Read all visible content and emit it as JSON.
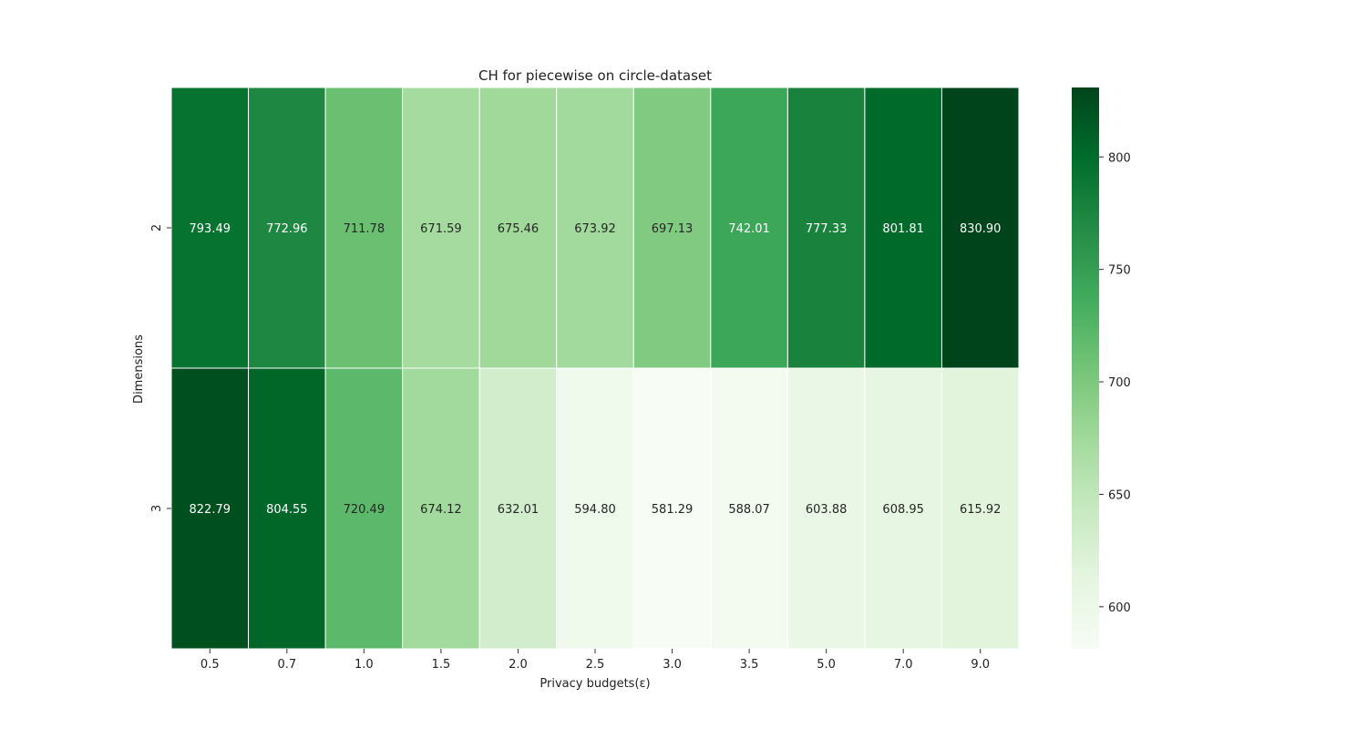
{
  "chart_data": {
    "type": "heatmap",
    "title": "CH for piecewise on circle-dataset",
    "xlabel": "Privacy budgets(ε)",
    "ylabel": "Dimensions",
    "x_categories": [
      "0.5",
      "0.7",
      "1.0",
      "1.5",
      "2.0",
      "2.5",
      "3.0",
      "3.5",
      "5.0",
      "7.0",
      "9.0"
    ],
    "y_categories": [
      "2",
      "3"
    ],
    "values": [
      [
        793.49,
        772.96,
        711.78,
        671.59,
        675.46,
        673.92,
        697.13,
        742.01,
        777.33,
        801.81,
        830.9
      ],
      [
        822.79,
        804.55,
        720.49,
        674.12,
        632.01,
        594.8,
        581.29,
        588.07,
        603.88,
        608.95,
        615.92
      ]
    ],
    "colormap": "Greens",
    "color_range": [
      581.29,
      830.9
    ],
    "colorbar_ticks": [
      "600",
      "650",
      "700",
      "750",
      "800"
    ],
    "cell_border_color": "#ffffff",
    "annotations": true
  }
}
